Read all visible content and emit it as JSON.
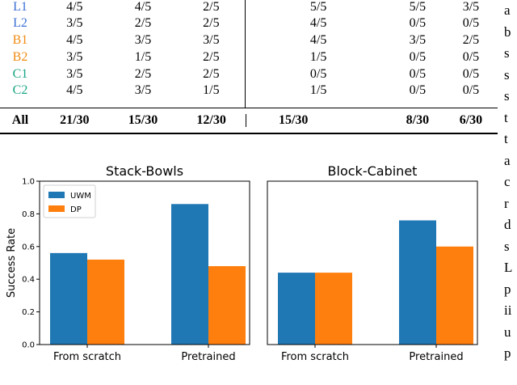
{
  "table": {
    "rows": [
      {
        "label": "L1",
        "color": "#3b6fd6",
        "cells": [
          "4/5",
          "4/5",
          "2/5",
          "5/5",
          "5/5",
          "3/5"
        ]
      },
      {
        "label": "L2",
        "color": "#3b6fd6",
        "cells": [
          "3/5",
          "2/5",
          "2/5",
          "4/5",
          "0/5",
          "0/5"
        ]
      },
      {
        "label": "B1",
        "color": "#f08a12",
        "cells": [
          "4/5",
          "3/5",
          "3/5",
          "4/5",
          "3/5",
          "2/5"
        ]
      },
      {
        "label": "B2",
        "color": "#f08a12",
        "cells": [
          "3/5",
          "1/5",
          "2/5",
          "1/5",
          "0/5",
          "0/5"
        ]
      },
      {
        "label": "C1",
        "color": "#1aa585",
        "cells": [
          "3/5",
          "2/5",
          "2/5",
          "0/5",
          "0/5",
          "0/5"
        ]
      },
      {
        "label": "C2",
        "color": "#1aa585",
        "cells": [
          "4/5",
          "3/5",
          "1/5",
          "1/5",
          "0/5",
          "0/5"
        ]
      }
    ],
    "total": {
      "label": "All",
      "cells": [
        "21/30",
        "15/30",
        "12/30",
        "15/30",
        "8/30",
        "6/30"
      ]
    }
  },
  "side_text": [
    "a",
    "b",
    "s",
    "s",
    "s",
    "t",
    "t",
    "a",
    "c",
    "r",
    "d",
    "s",
    "L",
    "p",
    "ii",
    "u",
    "p"
  ],
  "chart_data": [
    {
      "type": "bar",
      "title": "Stack-Bowls",
      "categories": [
        "From scratch",
        "Pretrained"
      ],
      "series": [
        {
          "name": "UWM",
          "color": "#1f77b4",
          "values": [
            0.56,
            0.86
          ]
        },
        {
          "name": "DP",
          "color": "#ff7f0e",
          "values": [
            0.52,
            0.48
          ]
        }
      ],
      "ylabel": "Success Rate",
      "ylim": [
        0,
        1.0
      ],
      "yticks": [
        "0.0",
        "0.2",
        "0.4",
        "0.6",
        "0.8",
        "1.0"
      ],
      "legend": "top-left"
    },
    {
      "type": "bar",
      "title": "Block-Cabinet",
      "categories": [
        "From scratch",
        "Pretrained"
      ],
      "series": [
        {
          "name": "UWM",
          "color": "#1f77b4",
          "values": [
            0.44,
            0.76
          ]
        },
        {
          "name": "DP",
          "color": "#ff7f0e",
          "values": [
            0.44,
            0.6
          ]
        }
      ],
      "ylim": [
        0,
        1.0
      ]
    }
  ]
}
